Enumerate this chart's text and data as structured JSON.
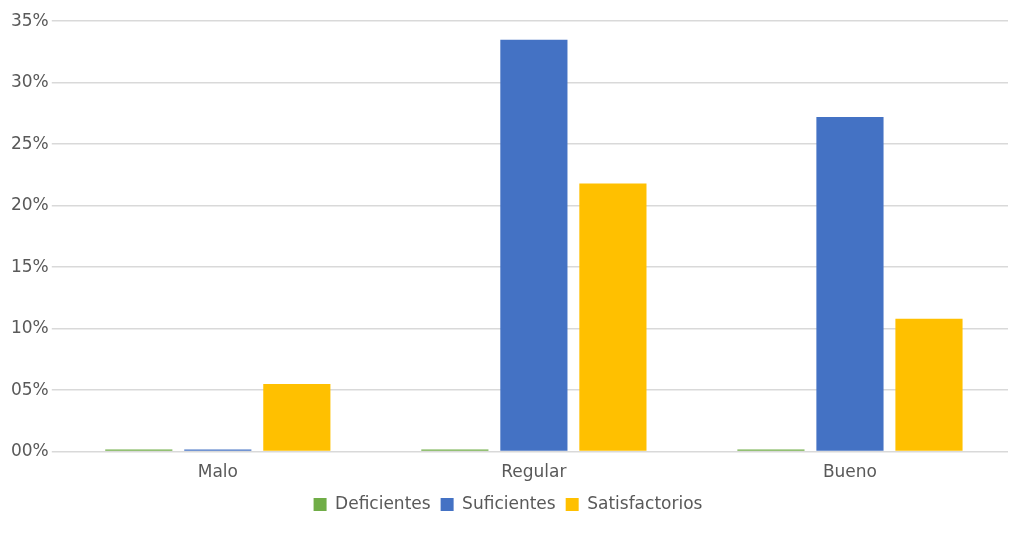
{
  "chart_data": {
    "type": "bar",
    "categories": [
      "Malo",
      "Regular",
      "Bueno"
    ],
    "series": [
      {
        "name": "Deficientes",
        "color": "#70ad47",
        "values": [
          0,
          0,
          0
        ]
      },
      {
        "name": "Suficientes",
        "color": "#4472c4",
        "values": [
          0,
          33.5,
          27.2
        ]
      },
      {
        "name": "Satisfactorios",
        "color": "#ffc000",
        "values": [
          5.5,
          21.8,
          10.8
        ]
      }
    ],
    "ylim": [
      0,
      35
    ],
    "yticks": [
      {
        "value": 0,
        "label": "00%"
      },
      {
        "value": 5,
        "label": "05%"
      },
      {
        "value": 10,
        "label": "10%"
      },
      {
        "value": 15,
        "label": "15%"
      },
      {
        "value": 20,
        "label": "20%"
      },
      {
        "value": 25,
        "label": "25%"
      },
      {
        "value": 30,
        "label": "30%"
      },
      {
        "value": 35,
        "label": "35%"
      }
    ],
    "grid": "y",
    "legend": "bottom"
  }
}
